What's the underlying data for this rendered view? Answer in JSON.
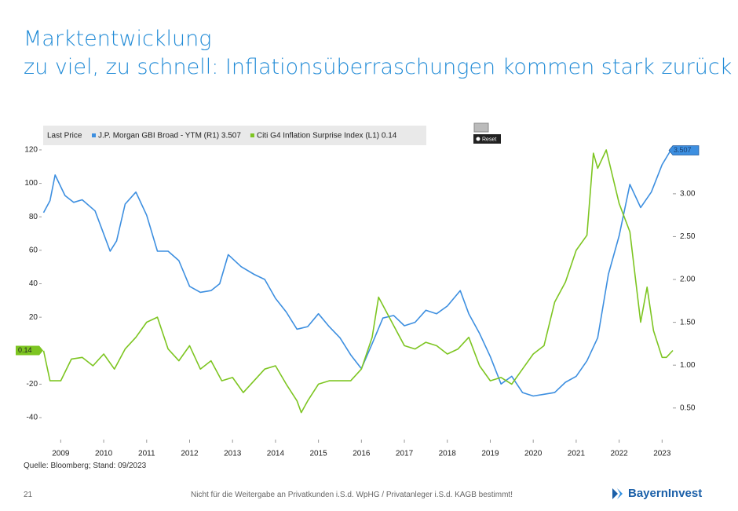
{
  "header": {
    "title": "Marktentwicklung",
    "subtitle": "zu viel, zu schnell: Inflationsüberraschungen kommen stark zurück"
  },
  "chart_data": {
    "type": "line",
    "legend_title": "Last Price",
    "reset_button": "Reset",
    "xlim": [
      2009,
      2023.75
    ],
    "xticks": [
      {
        "value": 2009.5,
        "label": "2009"
      },
      {
        "value": 2010.5,
        "label": "2010"
      },
      {
        "value": 2011.5,
        "label": "2011"
      },
      {
        "value": 2012.5,
        "label": "2012"
      },
      {
        "value": 2013.5,
        "label": "2013"
      },
      {
        "value": 2014.5,
        "label": "2014"
      },
      {
        "value": 2015.5,
        "label": "2015"
      },
      {
        "value": 2016.5,
        "label": "2016"
      },
      {
        "value": 2017.5,
        "label": "2017"
      },
      {
        "value": 2018.5,
        "label": "2018"
      },
      {
        "value": 2019.5,
        "label": "2019"
      },
      {
        "value": 2020.5,
        "label": "2020"
      },
      {
        "value": 2021.5,
        "label": "2021"
      },
      {
        "value": 2022.5,
        "label": "2022"
      },
      {
        "value": 2023.5,
        "label": "2023"
      }
    ],
    "ylim": [
      -45,
      125
    ],
    "yticks": [
      120,
      100,
      80,
      60,
      40,
      20,
      0,
      -20,
      -40
    ],
    "y2lim": [
      0.29,
      3.61
    ],
    "y2ticks": [
      {
        "value": 3,
        "label": "3.00"
      },
      {
        "value": 2.5,
        "label": "2.50"
      },
      {
        "value": 2,
        "label": "2.00"
      },
      {
        "value": 1.5,
        "label": "1.50"
      },
      {
        "value": 1,
        "label": "1.00"
      },
      {
        "value": 0.5,
        "label": "0.50"
      }
    ],
    "series": [
      {
        "name": "J.P. Morgan GBI Broad - YTM  (R1) 3.507",
        "last_label": "3.507",
        "color": "#3d8fe0",
        "axis": "y2",
        "x": [
          2009.1,
          2009.25,
          2009.37,
          2009.6,
          2009.8,
          2010.0,
          2010.3,
          2010.65,
          2010.8,
          2011.0,
          2011.25,
          2011.5,
          2011.75,
          2012.0,
          2012.25,
          2012.5,
          2012.75,
          2013.0,
          2013.2,
          2013.4,
          2013.7,
          2014.0,
          2014.25,
          2014.5,
          2014.75,
          2015.0,
          2015.25,
          2015.5,
          2015.75,
          2016.0,
          2016.25,
          2016.5,
          2016.75,
          2017.0,
          2017.25,
          2017.5,
          2017.75,
          2018.0,
          2018.25,
          2018.5,
          2018.8,
          2019.0,
          2019.25,
          2019.5,
          2019.75,
          2020.0,
          2020.25,
          2020.5,
          2020.75,
          2021.0,
          2021.25,
          2021.5,
          2021.75,
          2022.0,
          2022.25,
          2022.5,
          2022.75,
          2023.0,
          2023.25,
          2023.5,
          2023.7
        ],
        "values": [
          2.78,
          2.92,
          3.22,
          2.98,
          2.9,
          2.93,
          2.8,
          2.33,
          2.45,
          2.88,
          3.02,
          2.75,
          2.33,
          2.33,
          2.22,
          1.92,
          1.85,
          1.87,
          1.95,
          2.29,
          2.15,
          2.06,
          2.0,
          1.78,
          1.62,
          1.42,
          1.45,
          1.6,
          1.45,
          1.32,
          1.12,
          0.96,
          1.25,
          1.55,
          1.58,
          1.46,
          1.5,
          1.64,
          1.6,
          1.69,
          1.87,
          1.6,
          1.37,
          1.1,
          0.78,
          0.87,
          0.68,
          0.64,
          0.66,
          0.68,
          0.8,
          0.87,
          1.05,
          1.32,
          2.06,
          2.51,
          3.11,
          2.84,
          3.02,
          3.34,
          3.507
        ]
      },
      {
        "name": "Citi G4 Inflation Surprise Index  (L1) 0.14",
        "last_label": "0.14",
        "color": "#7dc521",
        "axis": "y",
        "x": [
          2009.1,
          2009.25,
          2009.5,
          2009.75,
          2010.0,
          2010.25,
          2010.5,
          2010.75,
          2011.0,
          2011.25,
          2011.5,
          2011.75,
          2012.0,
          2012.25,
          2012.5,
          2012.75,
          2013.0,
          2013.25,
          2013.5,
          2013.75,
          2014.0,
          2014.25,
          2014.5,
          2014.75,
          2015.0,
          2015.1,
          2015.25,
          2015.5,
          2015.75,
          2016.0,
          2016.25,
          2016.5,
          2016.75,
          2016.9,
          2017.25,
          2017.5,
          2017.75,
          2018.0,
          2018.25,
          2018.5,
          2018.75,
          2019.0,
          2019.25,
          2019.5,
          2019.75,
          2020.0,
          2020.25,
          2020.5,
          2020.75,
          2021.0,
          2021.25,
          2021.5,
          2021.75,
          2021.9,
          2022.0,
          2022.2,
          2022.5,
          2022.75,
          2023.0,
          2023.15,
          2023.3,
          2023.5,
          2023.6,
          2023.75
        ],
        "values": [
          0,
          -18,
          -18,
          -5,
          -4,
          -9,
          -2,
          -11,
          1,
          8,
          17,
          20,
          1,
          -6,
          3,
          -11,
          -6,
          -18,
          -16,
          -25,
          -18,
          -11,
          -9,
          -20,
          -30,
          -37,
          -30,
          -20,
          -18,
          -18,
          -18,
          -11,
          8,
          32,
          15,
          3,
          1,
          5,
          3,
          -2,
          1,
          8,
          -9,
          -18,
          -16,
          -20,
          -11,
          -2,
          3,
          29,
          41,
          60,
          69,
          118,
          109,
          120,
          88,
          71,
          17,
          38,
          12,
          -4,
          -4,
          0.14
        ]
      }
    ]
  },
  "footer": {
    "source": "Quelle: Bloomberg; Stand: 09/2023",
    "page": "21",
    "disclaimer": "Nicht für die Weitergabe an Privatkunden i.S.d. WpHG / Privatanleger i.S.d. KAGB bestimmt!",
    "logo": "BayernInvest"
  }
}
